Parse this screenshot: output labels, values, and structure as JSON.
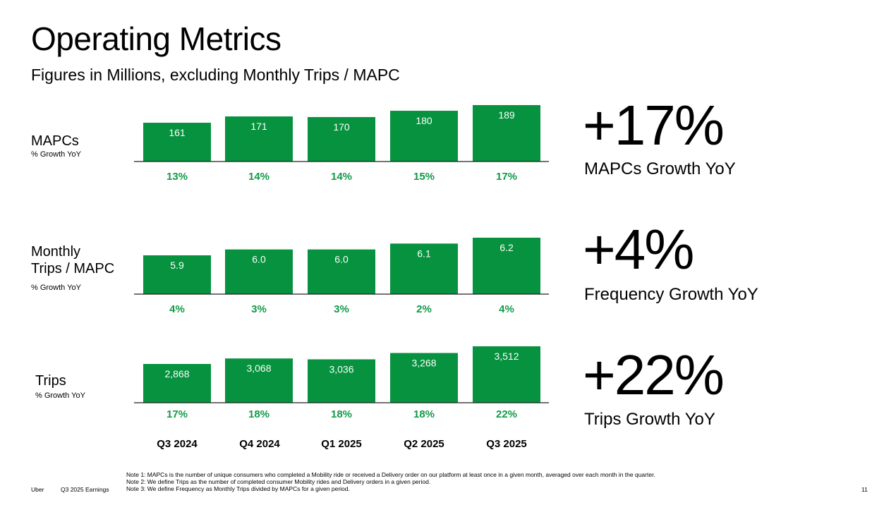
{
  "title": "Operating Metrics",
  "subtitle": "Figures in Millions, excluding Monthly Trips / MAPC",
  "growth_sublabel": "% Growth YoY",
  "colors": {
    "bar": "#06923e",
    "growth_text": "#119a48",
    "axis": "#222222"
  },
  "chart_data": [
    {
      "type": "bar",
      "title": "MAPCs",
      "categories": [
        "Q3 2024",
        "Q4 2024",
        "Q1 2025",
        "Q2 2025",
        "Q3 2025"
      ],
      "values": [
        161,
        171,
        170,
        180,
        189
      ],
      "value_labels": [
        "161",
        "171",
        "170",
        "180",
        "189"
      ],
      "growth_labels": [
        "13%",
        "14%",
        "14%",
        "15%",
        "17%"
      ],
      "headline": "+17%",
      "headline_label": "MAPCs Growth YoY"
    },
    {
      "type": "bar",
      "title": "Monthly Trips / MAPC",
      "categories": [
        "Q3 2024",
        "Q4 2024",
        "Q1 2025",
        "Q2 2025",
        "Q3 2025"
      ],
      "values": [
        5.9,
        6.0,
        6.0,
        6.1,
        6.2
      ],
      "value_labels": [
        "5.9",
        "6.0",
        "6.0",
        "6.1",
        "6.2"
      ],
      "growth_labels": [
        "4%",
        "3%",
        "3%",
        "2%",
        "4%"
      ],
      "headline": "+4%",
      "headline_label": "Frequency Growth YoY"
    },
    {
      "type": "bar",
      "title": "Trips",
      "categories": [
        "Q3 2024",
        "Q4 2024",
        "Q1 2025",
        "Q2 2025",
        "Q3 2025"
      ],
      "values": [
        2868,
        3068,
        3036,
        3268,
        3512
      ],
      "value_labels": [
        "2,868",
        "3,068",
        "3,036",
        "3,268",
        "3,512"
      ],
      "growth_labels": [
        "17%",
        "18%",
        "18%",
        "18%",
        "22%"
      ],
      "headline": "+22%",
      "headline_label": "Trips Growth YoY"
    }
  ],
  "labels": {
    "mapcs": "MAPCs",
    "monthly_line1": "Monthly",
    "monthly_line2": "Trips / MAPC",
    "trips": "Trips"
  },
  "categories": [
    "Q3 2024",
    "Q4 2024",
    "Q1 2025",
    "Q2 2025",
    "Q3 2025"
  ],
  "notes": [
    "Note 1: MAPCs is the number of unique consumers who completed a Mobility ride or received a Delivery order on our platform at least once in a given month, averaged over each month in the quarter.",
    "Note 2: We define Trips as the number of completed consumer Mobility rides and Delivery orders in a given period.",
    "Note 3: We define Frequency as Monthly Trips divided by MAPCs for a given period."
  ],
  "footer": {
    "brand": "Uber",
    "report": "Q3 2025 Earnings",
    "page": "11"
  }
}
